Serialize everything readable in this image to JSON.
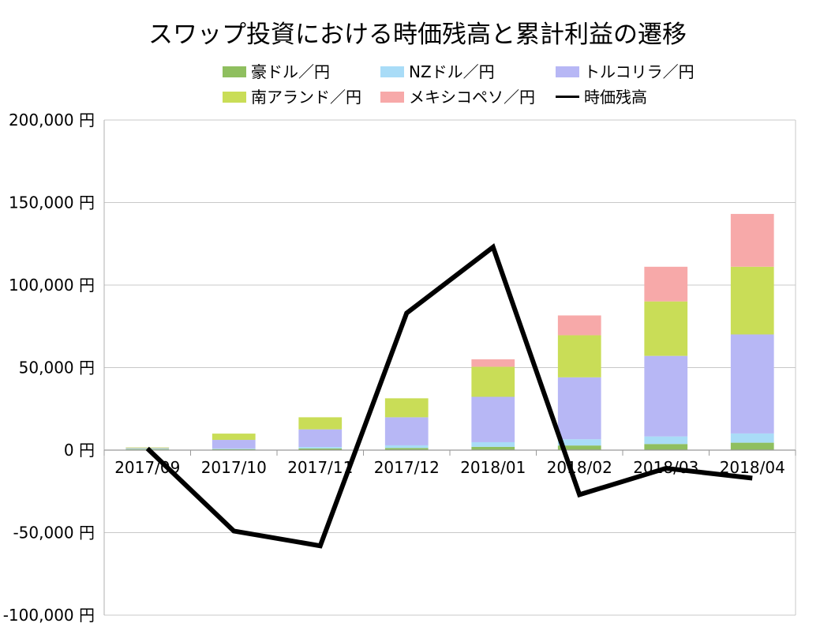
{
  "chart_data": {
    "type": "bar",
    "title": "スワップ投資における時価残高と累計利益の遷移",
    "xlabel": "",
    "ylabel": "",
    "ylim": [
      -100000,
      200000
    ],
    "ytick_values": [
      200000,
      150000,
      100000,
      50000,
      0,
      -50000,
      -100000
    ],
    "ytick_labels": [
      "200,000 円",
      "150,000 円",
      "100,000 円",
      "50,000 円",
      "0 円",
      "-50,000 円",
      "-100,000 円"
    ],
    "categories": [
      "2017/09",
      "2017/10",
      "2017/11",
      "2017/12",
      "2018/01",
      "2018/02",
      "2018/03",
      "2018/04"
    ],
    "stacked": true,
    "grid": true,
    "legend_position": "top",
    "series": [
      {
        "name": "豪ドル／円",
        "kind": "bar",
        "color": "#8fbf5f",
        "values": [
          600,
          600,
          1000,
          1300,
          2000,
          2800,
          3700,
          4500
        ]
      },
      {
        "name": "NZドル／円",
        "kind": "bar",
        "color": "#a9dcf7",
        "values": [
          300,
          400,
          900,
          1600,
          2800,
          3800,
          4600,
          5600
        ]
      },
      {
        "name": "トルコリラ／円",
        "kind": "bar",
        "color": "#b7b7f5",
        "values": [
          300,
          5200,
          10700,
          17000,
          27500,
          37500,
          48800,
          60000
        ]
      },
      {
        "name": "南アランド／円",
        "kind": "bar",
        "color": "#c9dd57",
        "values": [
          400,
          3800,
          7300,
          11500,
          18200,
          25500,
          33000,
          41000
        ]
      },
      {
        "name": "メキシコペソ／円",
        "kind": "bar",
        "color": "#f7a9a9",
        "values": [
          0,
          0,
          0,
          0,
          4500,
          12000,
          21000,
          32000
        ]
      },
      {
        "name": "時価残高",
        "kind": "line",
        "color": "#000000",
        "values": [
          1000,
          -49000,
          -58000,
          83000,
          123000,
          -27000,
          -11000,
          -17000
        ]
      }
    ]
  }
}
